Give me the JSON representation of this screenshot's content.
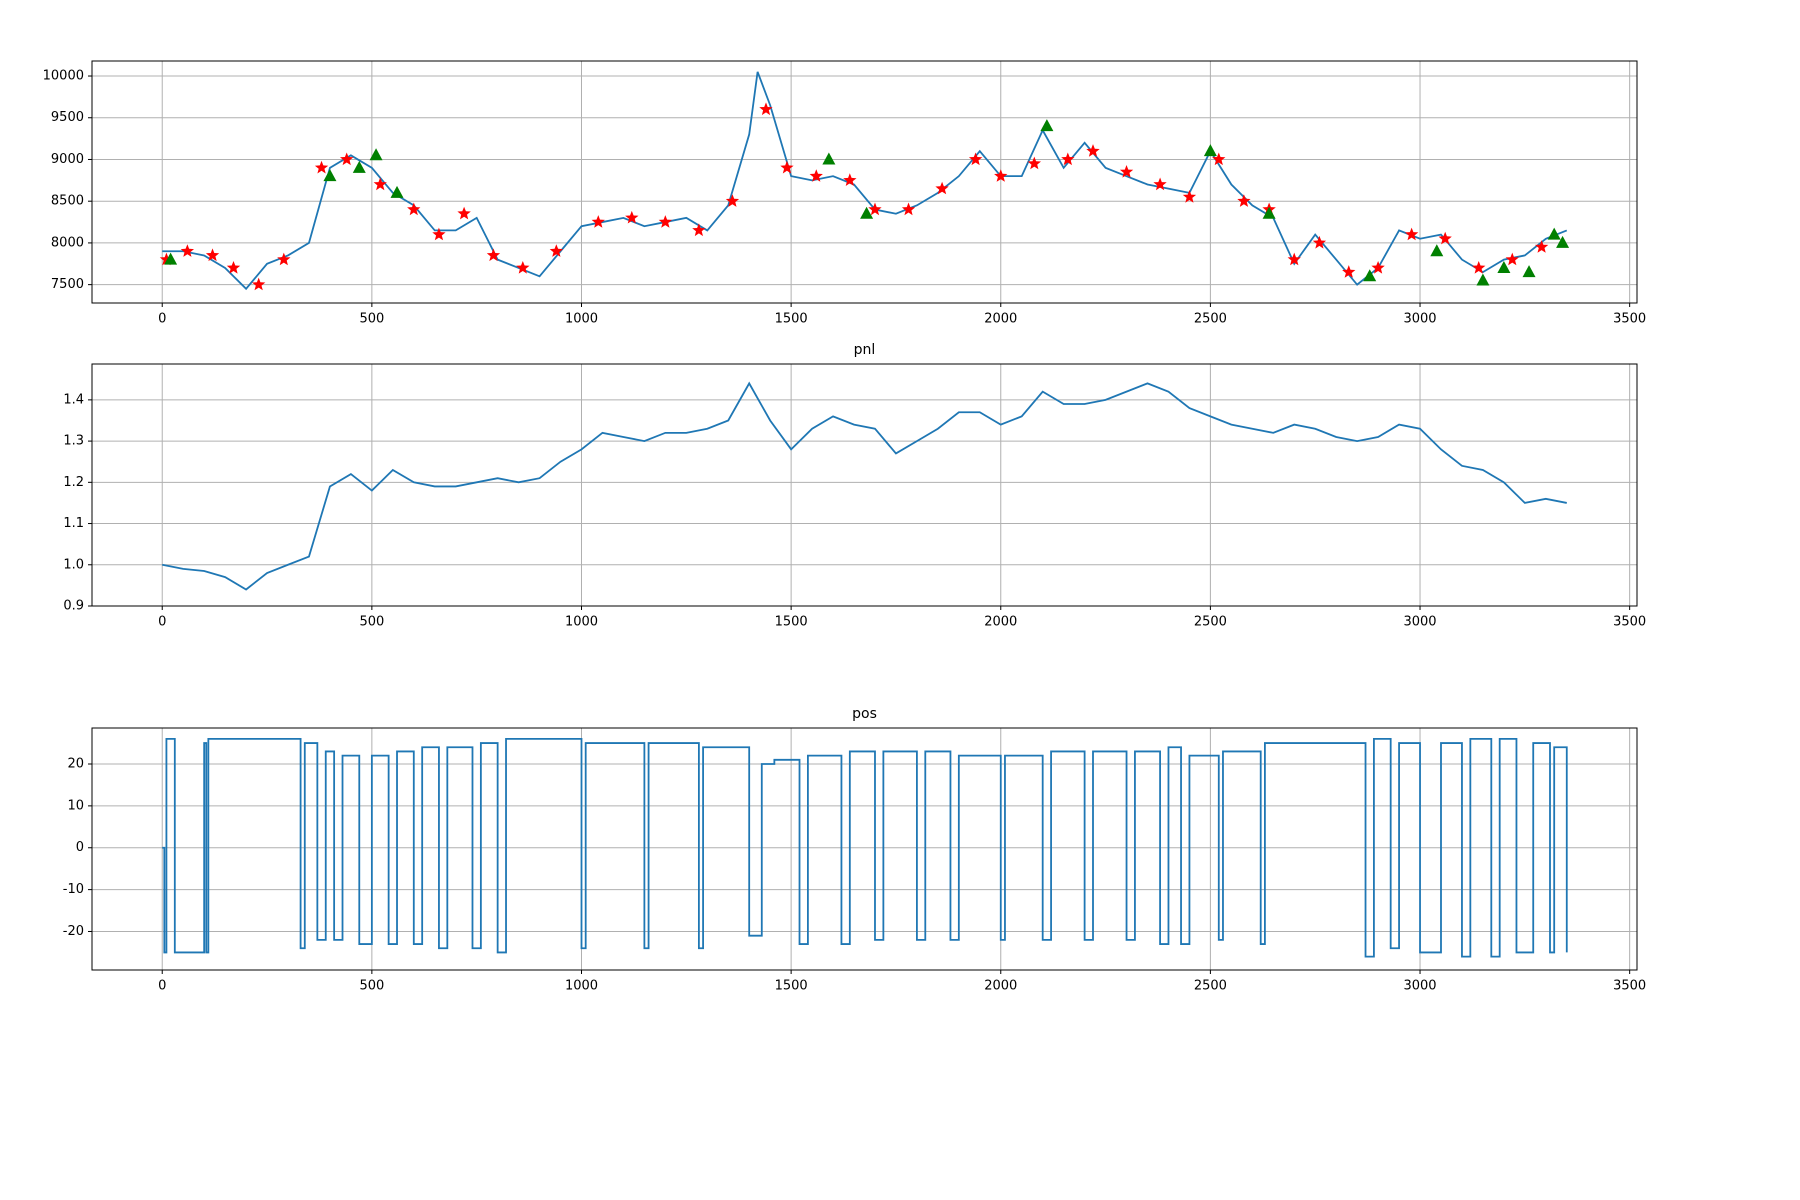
{
  "chart_data": [
    {
      "type": "line",
      "grid": true,
      "xlim": [
        -167.5,
        3517.5
      ],
      "xticks": [
        0,
        500,
        1000,
        1500,
        2000,
        2500,
        3000,
        3500
      ],
      "ylim": [
        7280,
        10180
      ],
      "yticks": [
        7500,
        8000,
        8500,
        9000,
        9500,
        10000
      ],
      "series": [
        {
          "type": "line",
          "color": "#1f77b4",
          "x": [
            0,
            50,
            100,
            150,
            200,
            250,
            300,
            350,
            400,
            450,
            500,
            550,
            600,
            650,
            700,
            750,
            800,
            850,
            900,
            950,
            1000,
            1050,
            1100,
            1150,
            1200,
            1250,
            1300,
            1350,
            1400,
            1420,
            1450,
            1500,
            1550,
            1600,
            1650,
            1700,
            1750,
            1800,
            1850,
            1900,
            1950,
            2000,
            2050,
            2100,
            2150,
            2200,
            2250,
            2300,
            2350,
            2400,
            2450,
            2500,
            2550,
            2600,
            2650,
            2700,
            2750,
            2800,
            2850,
            2900,
            2950,
            3000,
            3050,
            3100,
            3150,
            3200,
            3250,
            3300,
            3350
          ],
          "values": [
            7900,
            7900,
            7850,
            7700,
            7450,
            7750,
            7850,
            8000,
            8900,
            9050,
            8900,
            8600,
            8450,
            8150,
            8150,
            8300,
            7800,
            7700,
            7600,
            7900,
            8200,
            8250,
            8300,
            8200,
            8250,
            8300,
            8150,
            8450,
            9300,
            10050,
            9650,
            8800,
            8750,
            8800,
            8700,
            8400,
            8350,
            8450,
            8600,
            8800,
            9100,
            8800,
            8800,
            9350,
            8900,
            9200,
            8900,
            8800,
            8700,
            8650,
            8600,
            9100,
            8700,
            8450,
            8300,
            7750,
            8100,
            7800,
            7500,
            7700,
            8150,
            8050,
            8100,
            7800,
            7650,
            7800,
            7850,
            8050,
            8150
          ]
        },
        {
          "type": "scatter",
          "marker": "star",
          "color": "red",
          "x": [
            10,
            60,
            120,
            170,
            230,
            290,
            380,
            440,
            520,
            600,
            660,
            720,
            790,
            860,
            940,
            1040,
            1120,
            1200,
            1280,
            1360,
            1440,
            1490,
            1560,
            1640,
            1700,
            1780,
            1860,
            1940,
            2000,
            2080,
            2160,
            2220,
            2300,
            2380,
            2450,
            2520,
            2580,
            2640,
            2700,
            2760,
            2830,
            2900,
            2980,
            3060,
            3140,
            3220,
            3290
          ],
          "values": [
            7800,
            7900,
            7850,
            7700,
            7500,
            7800,
            8900,
            9000,
            8700,
            8400,
            8100,
            8350,
            7850,
            7700,
            7900,
            8250,
            8300,
            8250,
            8150,
            8500,
            9600,
            8900,
            8800,
            8750,
            8400,
            8400,
            8650,
            9000,
            8800,
            8950,
            9000,
            9100,
            8850,
            8700,
            8550,
            9000,
            8500,
            8400,
            7800,
            8000,
            7650,
            7700,
            8100,
            8050,
            7700,
            7800,
            7950
          ]
        },
        {
          "type": "scatter",
          "marker": "triangle",
          "color": "green",
          "x": [
            20,
            400,
            470,
            510,
            560,
            1590,
            1680,
            2110,
            2500,
            2640,
            2880,
            3040,
            3150,
            3200,
            3260,
            3320,
            3340
          ],
          "values": [
            7800,
            8800,
            8900,
            9050,
            8600,
            9000,
            8350,
            9400,
            9100,
            8350,
            7600,
            7900,
            7550,
            7700,
            7650,
            8100,
            8000
          ]
        }
      ]
    },
    {
      "type": "line",
      "title": "pnl",
      "grid": true,
      "xlim": [
        -167.5,
        3517.5
      ],
      "xticks": [
        0,
        500,
        1000,
        1500,
        2000,
        2500,
        3000,
        3500
      ],
      "ylim": [
        0.9,
        1.487
      ],
      "yticks": [
        0.9,
        {
          "value": 1,
          "label": "1.0"
        },
        1.1,
        1.2,
        1.3,
        1.4
      ],
      "series": [
        {
          "type": "line",
          "color": "#1f77b4",
          "x": [
            0,
            50,
            100,
            150,
            200,
            250,
            300,
            350,
            400,
            450,
            500,
            550,
            600,
            650,
            700,
            750,
            800,
            850,
            900,
            950,
            1000,
            1050,
            1100,
            1150,
            1200,
            1250,
            1300,
            1350,
            1400,
            1450,
            1500,
            1550,
            1600,
            1650,
            1700,
            1750,
            1800,
            1850,
            1900,
            1950,
            2000,
            2050,
            2100,
            2150,
            2200,
            2250,
            2300,
            2350,
            2400,
            2450,
            2500,
            2550,
            2600,
            2650,
            2700,
            2750,
            2800,
            2850,
            2900,
            2950,
            3000,
            3050,
            3100,
            3150,
            3200,
            3250,
            3300,
            3350
          ],
          "values": [
            1.0,
            0.99,
            0.985,
            0.97,
            0.94,
            0.98,
            1.0,
            1.02,
            1.19,
            1.22,
            1.18,
            1.23,
            1.2,
            1.19,
            1.19,
            1.2,
            1.21,
            1.2,
            1.21,
            1.25,
            1.28,
            1.32,
            1.31,
            1.3,
            1.32,
            1.32,
            1.33,
            1.35,
            1.44,
            1.35,
            1.28,
            1.33,
            1.36,
            1.34,
            1.33,
            1.27,
            1.3,
            1.33,
            1.37,
            1.37,
            1.34,
            1.36,
            1.42,
            1.39,
            1.39,
            1.4,
            1.42,
            1.44,
            1.42,
            1.38,
            1.36,
            1.34,
            1.33,
            1.32,
            1.34,
            1.33,
            1.31,
            1.3,
            1.31,
            1.34,
            1.33,
            1.28,
            1.24,
            1.23,
            1.2,
            1.15,
            1.16,
            1.15
          ]
        }
      ]
    },
    {
      "type": "step",
      "title": "pos",
      "grid": true,
      "xlim": [
        -167.5,
        3517.5
      ],
      "xticks": [
        0,
        500,
        1000,
        1500,
        2000,
        2500,
        3000,
        3500
      ],
      "ylim": [
        -29.2,
        28.6
      ],
      "yticks": [
        -20,
        -10,
        0,
        10,
        20
      ],
      "series": [
        {
          "type": "step",
          "color": "#1f77b4",
          "x": [
            0,
            5,
            10,
            30,
            100,
            105,
            110,
            330,
            340,
            370,
            390,
            410,
            430,
            470,
            500,
            540,
            560,
            600,
            620,
            660,
            680,
            740,
            760,
            800,
            820,
            1000,
            1010,
            1150,
            1160,
            1280,
            1290,
            1400,
            1430,
            1460,
            1520,
            1540,
            1620,
            1640,
            1700,
            1720,
            1800,
            1820,
            1880,
            1900,
            2000,
            2010,
            2100,
            2120,
            2200,
            2220,
            2300,
            2320,
            2380,
            2400,
            2430,
            2450,
            2520,
            2530,
            2620,
            2630,
            2870,
            2890,
            2930,
            2950,
            3000,
            3050,
            3100,
            3120,
            3170,
            3190,
            3230,
            3270,
            3310,
            3320,
            3350
          ],
          "values": [
            0,
            -25,
            26,
            -25,
            25,
            -25,
            26,
            -24,
            25,
            -22,
            23,
            -22,
            22,
            -23,
            22,
            -23,
            23,
            -23,
            24,
            -24,
            24,
            -24,
            25,
            -25,
            26,
            -24,
            25,
            -24,
            25,
            -24,
            24,
            -21,
            20,
            21,
            -23,
            22,
            -23,
            23,
            -22,
            23,
            -22,
            23,
            -22,
            22,
            -22,
            22,
            -22,
            23,
            -22,
            23,
            -22,
            23,
            -23,
            24,
            -23,
            22,
            -22,
            23,
            -23,
            25,
            -26,
            26,
            -24,
            25,
            -25,
            25,
            -26,
            26,
            -26,
            26,
            -25,
            25,
            -25,
            24,
            -25
          ]
        }
      ]
    }
  ]
}
